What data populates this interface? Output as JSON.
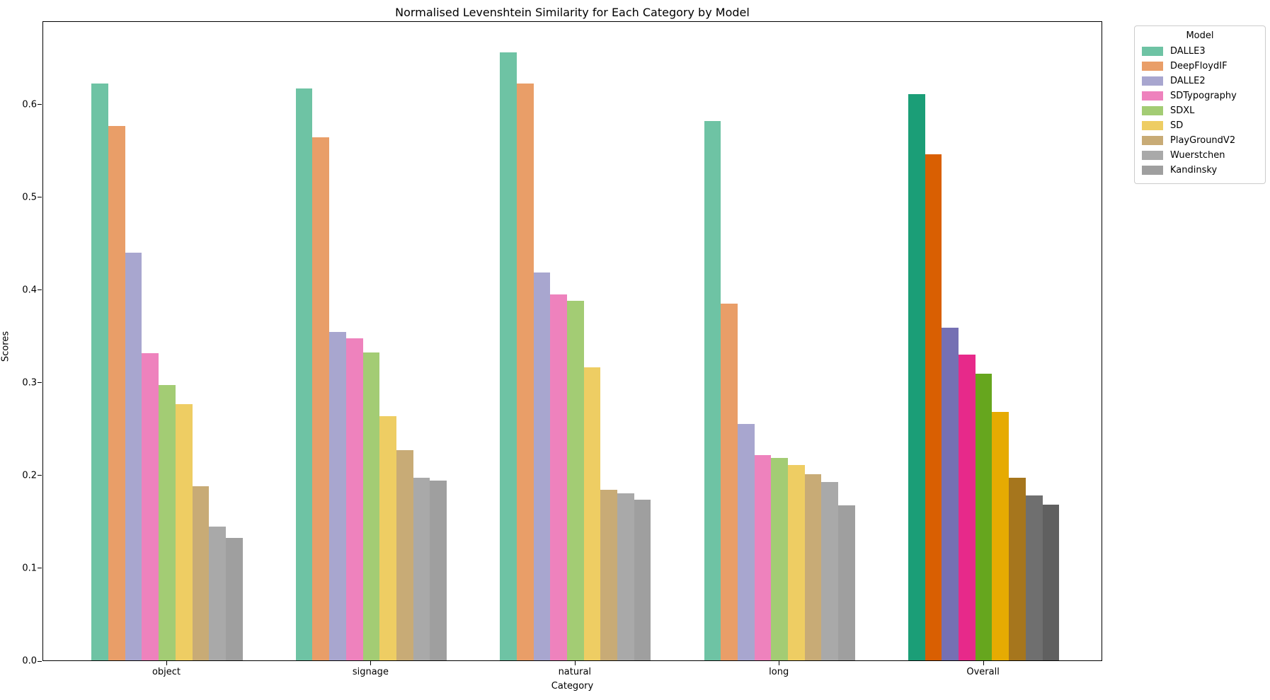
{
  "title": "Normalised Levenshtein Similarity for Each Category by Model",
  "legend": {
    "title": "Model"
  },
  "chart_data": {
    "type": "bar",
    "title": "Normalised Levenshtein Similarity for Each Category by Model",
    "xlabel": "Category",
    "ylabel": "Scores",
    "categories": [
      "object",
      "signage",
      "natural",
      "long",
      "Overall"
    ],
    "series": [
      {
        "name": "DALLE3",
        "values": [
          0.622,
          0.617,
          0.656,
          0.582,
          0.611
        ]
      },
      {
        "name": "DeepFloydIF",
        "values": [
          0.576,
          0.564,
          0.622,
          0.385,
          0.546
        ]
      },
      {
        "name": "DALLE2",
        "values": [
          0.44,
          0.354,
          0.418,
          0.255,
          0.359
        ]
      },
      {
        "name": "SDTypography",
        "values": [
          0.331,
          0.347,
          0.395,
          0.221,
          0.33
        ]
      },
      {
        "name": "SDXL",
        "values": [
          0.297,
          0.332,
          0.388,
          0.218,
          0.309
        ]
      },
      {
        "name": "SD",
        "values": [
          0.276,
          0.263,
          0.316,
          0.211,
          0.268
        ]
      },
      {
        "name": "PlayGroundV2",
        "values": [
          0.188,
          0.227,
          0.184,
          0.201,
          0.197
        ]
      },
      {
        "name": "Wuerstchen",
        "values": [
          0.144,
          0.197,
          0.18,
          0.192,
          0.178
        ]
      },
      {
        "name": "Kandinsky",
        "values": [
          0.132,
          0.194,
          0.173,
          0.167,
          0.168
        ]
      }
    ],
    "ylim": [
      0.0,
      0.69
    ],
    "yticks": [
      0.0,
      0.1,
      0.2,
      0.3,
      0.4,
      0.5,
      0.6
    ],
    "grid": false,
    "legend_title": "Model",
    "legend_position": "outside-upper-right",
    "highlight_category": "Overall",
    "palette_categories": [
      "#6ec3a4",
      "#e99e68",
      "#a8a6cf",
      "#ee82bd",
      "#a3cc74",
      "#eecd63",
      "#c8ab76",
      "#a9a9a9",
      "#9f9f9f"
    ],
    "palette_highlight": [
      "#1b9e77",
      "#d95f02",
      "#7570b3",
      "#e7298a",
      "#66a61e",
      "#e6ab02",
      "#a6761d",
      "#6f6f6f",
      "#606060"
    ]
  }
}
